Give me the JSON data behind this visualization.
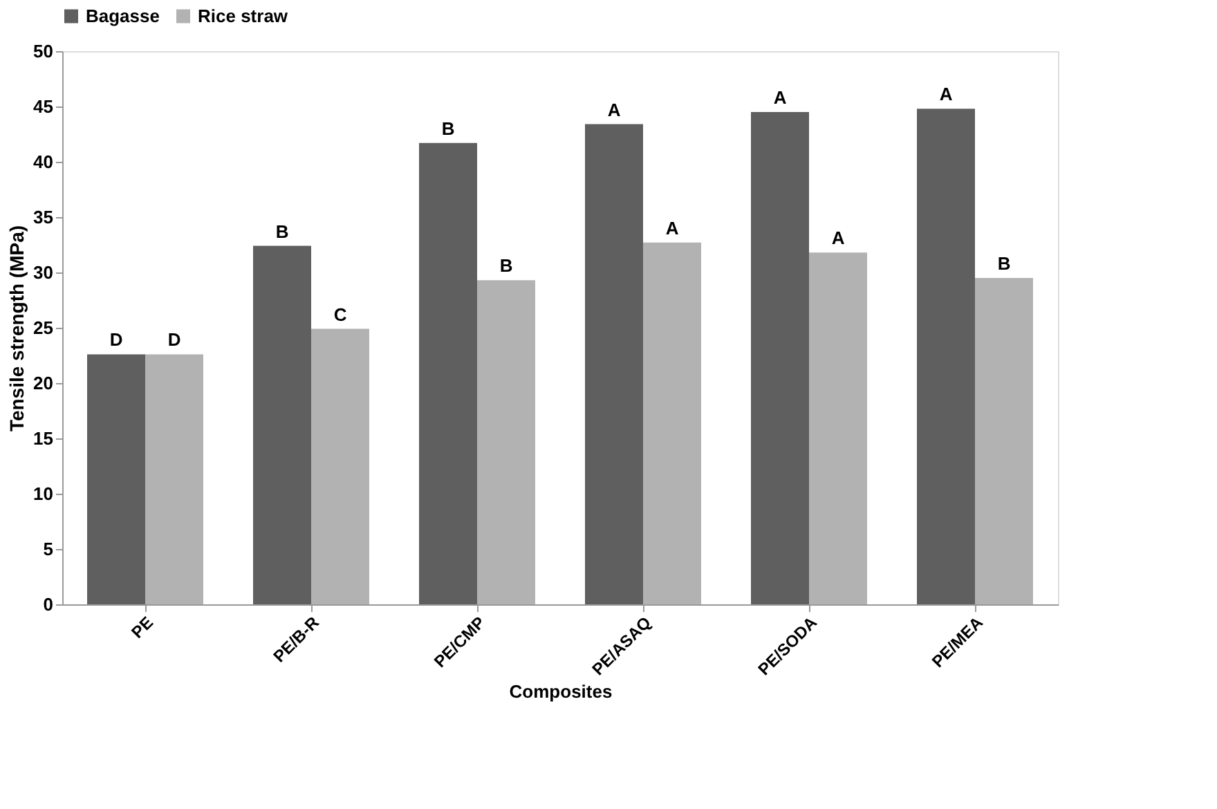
{
  "chart_data": {
    "type": "bar",
    "xlabel": "Composites",
    "ylabel": "Tensile strength (MPa)",
    "categories": [
      "PE",
      "PE/B-R",
      "PE/CMP",
      "PE/ASAQ",
      "PE/SODA",
      "PE/MEA"
    ],
    "series": [
      {
        "name": "Bagasse",
        "color": "#5f5f5f",
        "values": [
          22.6,
          32.4,
          41.7,
          43.4,
          44.5,
          44.8
        ],
        "value_labels": [
          "D",
          "B",
          "B",
          "A",
          "A",
          "A"
        ]
      },
      {
        "name": "Rice straw",
        "color": "#b2b2b2",
        "values": [
          22.6,
          24.9,
          29.3,
          32.7,
          31.8,
          29.5
        ],
        "value_labels": [
          "D",
          "C",
          "B",
          "A",
          "A",
          "B"
        ]
      }
    ],
    "ylim": [
      0,
      50
    ],
    "yticks": [
      0,
      5,
      10,
      15,
      20,
      25,
      30,
      35,
      40,
      45,
      50
    ],
    "grid": false,
    "legend": "top"
  }
}
